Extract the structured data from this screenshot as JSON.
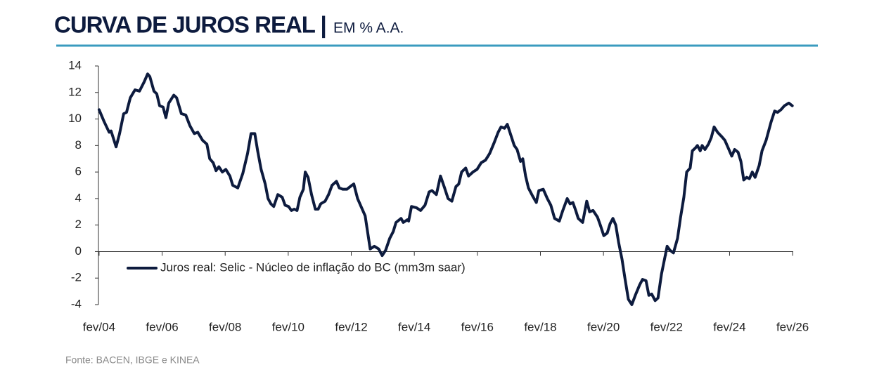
{
  "chart_data": {
    "type": "line",
    "title": "CURVA DE JUROS REAL |",
    "subtitle": "EM % A.A.",
    "source": "Fonte: BACEN, IBGE e KINEA",
    "legend": "lower left",
    "x": [
      2004.08,
      2004.24,
      2004.4,
      2004.46,
      2004.62,
      2004.73,
      2004.86,
      2004.95,
      2005.07,
      2005.22,
      2005.36,
      2005.51,
      2005.62,
      2005.69,
      2005.82,
      2005.91,
      2006.0,
      2006.11,
      2006.2,
      2006.29,
      2006.45,
      2006.54,
      2006.69,
      2006.83,
      2006.96,
      2007.1,
      2007.21,
      2007.36,
      2007.5,
      2007.59,
      2007.7,
      2007.79,
      2007.88,
      2007.99,
      2008.1,
      2008.23,
      2008.32,
      2008.48,
      2008.64,
      2008.79,
      2008.9,
      2009.02,
      2009.11,
      2009.22,
      2009.35,
      2009.44,
      2009.53,
      2009.62,
      2009.75,
      2009.89,
      2009.98,
      2010.09,
      2010.18,
      2010.27,
      2010.36,
      2010.45,
      2010.56,
      2010.62,
      2010.71,
      2010.82,
      2010.94,
      2011.03,
      2011.11,
      2011.25,
      2011.36,
      2011.47,
      2011.61,
      2011.7,
      2011.81,
      2011.94,
      2012.1,
      2012.16,
      2012.28,
      2012.39,
      2012.52,
      2012.68,
      2012.81,
      2012.95,
      2013.06,
      2013.17,
      2013.3,
      2013.41,
      2013.5,
      2013.66,
      2013.73,
      2013.86,
      2013.9,
      2013.99,
      2014.15,
      2014.28,
      2014.42,
      2014.55,
      2014.64,
      2014.78,
      2014.91,
      2015.04,
      2015.15,
      2015.27,
      2015.4,
      2015.49,
      2015.58,
      2015.71,
      2015.8,
      2015.94,
      2016.07,
      2016.2,
      2016.34,
      2016.47,
      2016.61,
      2016.74,
      2016.83,
      2016.94,
      2017.03,
      2017.14,
      2017.25,
      2017.34,
      2017.45,
      2017.52,
      2017.61,
      2017.7,
      2017.83,
      2017.95,
      2018.03,
      2018.17,
      2018.3,
      2018.41,
      2018.53,
      2018.68,
      2018.79,
      2018.93,
      2019.02,
      2019.11,
      2019.2,
      2019.28,
      2019.42,
      2019.55,
      2019.64,
      2019.75,
      2019.89,
      2019.98,
      2020.09,
      2020.2,
      2020.29,
      2020.38,
      2020.47,
      2020.56,
      2020.67,
      2020.76,
      2020.87,
      2020.98,
      2021.09,
      2021.23,
      2021.32,
      2021.43,
      2021.52,
      2021.61,
      2021.72,
      2021.81,
      2021.92,
      2022.1,
      2022.19,
      2022.3,
      2022.43,
      2022.52,
      2022.63,
      2022.72,
      2022.83,
      2022.9,
      2022.99,
      2023.06,
      2023.15,
      2023.21,
      2023.3,
      2023.41,
      2023.5,
      2023.59,
      2023.7,
      2023.82,
      2023.93,
      2024.04,
      2024.15,
      2024.24,
      2024.35,
      2024.44,
      2024.53,
      2024.62,
      2024.71,
      2024.8,
      2024.89,
      2025.02,
      2025.11,
      2025.24,
      2025.4,
      2025.51,
      2025.6,
      2025.71,
      2025.82,
      2025.96,
      2026.07
    ],
    "series": [
      {
        "name": "Juros real: Selic - Núcleo de inflação do BC (mm3m saar)",
        "color": "#0d1b3e",
        "values": [
          10.7,
          9.8,
          9.0,
          9.1,
          7.9,
          8.9,
          10.4,
          10.5,
          11.6,
          12.2,
          12.1,
          12.8,
          13.4,
          13.2,
          12.1,
          11.9,
          11.0,
          10.9,
          10.1,
          11.2,
          11.8,
          11.6,
          10.4,
          10.3,
          9.5,
          8.9,
          9.0,
          8.4,
          8.1,
          7.0,
          6.7,
          6.1,
          6.4,
          6.0,
          6.2,
          5.7,
          5.0,
          4.8,
          5.9,
          7.4,
          8.9,
          8.9,
          7.6,
          6.2,
          5.1,
          4.0,
          3.6,
          3.4,
          4.3,
          4.1,
          3.5,
          3.4,
          3.1,
          3.2,
          3.1,
          4.1,
          4.7,
          6.0,
          5.6,
          4.3,
          3.2,
          3.2,
          3.6,
          3.8,
          4.3,
          5.0,
          5.3,
          4.8,
          4.7,
          4.7,
          5.0,
          5.1,
          4.0,
          3.4,
          2.7,
          0.2,
          0.4,
          0.2,
          -0.3,
          0.1,
          1.0,
          1.5,
          2.2,
          2.5,
          2.2,
          2.4,
          2.3,
          3.4,
          3.3,
          3.1,
          3.5,
          4.5,
          4.6,
          4.3,
          5.7,
          4.8,
          4.0,
          3.8,
          4.9,
          5.1,
          6.0,
          6.3,
          5.7,
          6.0,
          6.2,
          6.7,
          6.9,
          7.4,
          8.2,
          9.0,
          9.4,
          9.3,
          9.6,
          8.8,
          8.0,
          7.7,
          6.8,
          7.0,
          5.7,
          4.8,
          4.2,
          3.7,
          4.6,
          4.7,
          4.0,
          3.5,
          2.5,
          2.3,
          3.1,
          4.0,
          3.6,
          3.7,
          3.1,
          2.5,
          2.2,
          3.8,
          3.0,
          3.1,
          2.6,
          2.0,
          1.2,
          1.4,
          2.1,
          2.5,
          2.0,
          0.7,
          -0.6,
          -2.0,
          -3.6,
          -4.0,
          -3.3,
          -2.5,
          -2.1,
          -2.2,
          -3.3,
          -3.2,
          -3.7,
          -3.5,
          -1.7,
          0.4,
          0.1,
          -0.1,
          1.0,
          2.5,
          4.1,
          6.0,
          6.3,
          7.6,
          7.8,
          8.0,
          7.6,
          8.0,
          7.7,
          8.1,
          8.6,
          9.4,
          9.0,
          8.7,
          8.4,
          7.8,
          7.2,
          7.7,
          7.5,
          6.8,
          5.4,
          5.6,
          5.5,
          6.0,
          5.6,
          6.5,
          7.6,
          8.4,
          9.8,
          10.6,
          10.5,
          10.7,
          11.0,
          11.2,
          11.0
        ]
      }
    ],
    "xlim": [
      2004.06,
      2026.1
    ],
    "xticks": [
      {
        "value": 2004.08,
        "label": "fev/04"
      },
      {
        "value": 2006.08,
        "label": "fev/06"
      },
      {
        "value": 2008.08,
        "label": "fev/08"
      },
      {
        "value": 2010.08,
        "label": "fev/10"
      },
      {
        "value": 2012.08,
        "label": "fev/12"
      },
      {
        "value": 2014.08,
        "label": "fev/14"
      },
      {
        "value": 2016.08,
        "label": "fev/16"
      },
      {
        "value": 2018.08,
        "label": "fev/18"
      },
      {
        "value": 2020.08,
        "label": "fev/20"
      },
      {
        "value": 2022.08,
        "label": "fev/22"
      },
      {
        "value": 2024.08,
        "label": "fev/24"
      },
      {
        "value": 2026.08,
        "label": "fev/26"
      }
    ],
    "ylim": [
      -4,
      14
    ],
    "yticks": [
      -4,
      -2,
      0,
      2,
      4,
      6,
      8,
      10,
      12,
      14
    ]
  }
}
